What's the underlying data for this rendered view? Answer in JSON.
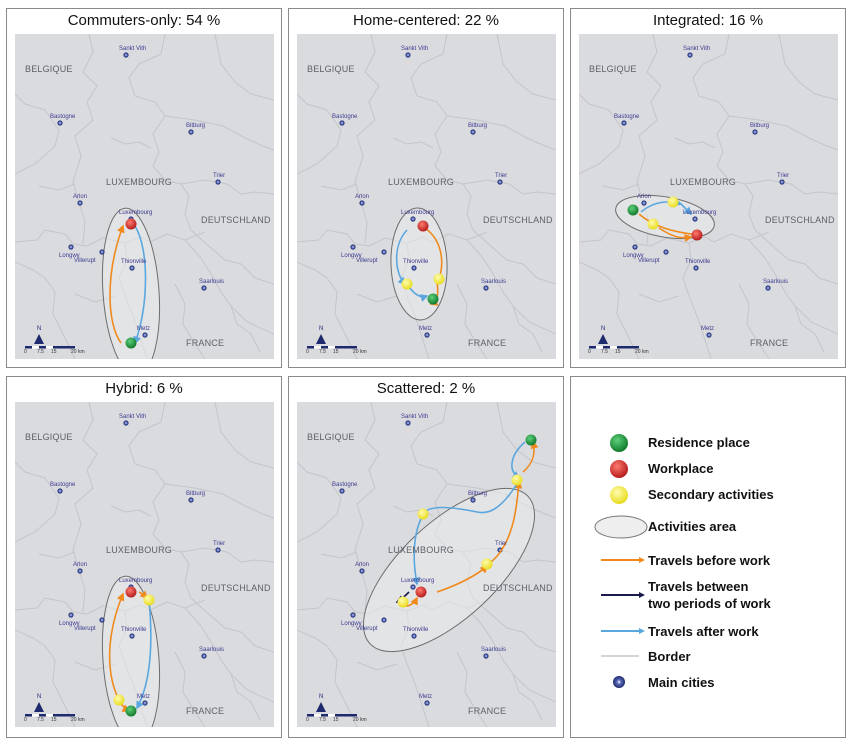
{
  "panels": [
    {
      "key": "commuters",
      "title": "Commuters-only: 54 %"
    },
    {
      "key": "home",
      "title": "Home-centered: 22 %"
    },
    {
      "key": "integrated",
      "title": "Integrated: 16 %"
    },
    {
      "key": "hybrid",
      "title": "Hybrid: 6 %"
    },
    {
      "key": "scattered",
      "title": "Scattered: 2 %"
    }
  ],
  "countries": {
    "belgique": "BELGIQUE",
    "luxembourg": "LUXEMBOURG",
    "deutschland": "DEUTSCHLAND",
    "france": "FRANCE"
  },
  "cities": {
    "sankt_vith": "Sankt Vith",
    "bastogne": "Bastogne",
    "bitburg": "Bitburg",
    "arlon": "Arlon",
    "trier": "Trier",
    "luxembourg": "Luxembourg",
    "longwy": "Longwy",
    "villerupt": "Villerupt",
    "thionville": "Thionville",
    "saarlouis": "Saarlouis",
    "metz": "Metz"
  },
  "scale": {
    "north": "N",
    "ticks": [
      "0",
      "7.5",
      "15",
      "20"
    ],
    "unit": "km"
  },
  "legend": {
    "residence": "Residence place",
    "workplace": "Workplace",
    "secondary": "Secondary activities",
    "area": "Activities area",
    "before": "Travels before work",
    "between_1": "Travels between",
    "between_2": "two periods of work",
    "after": "Travels after work",
    "border": "Border",
    "cities": "Main cities"
  },
  "colors": {
    "residence": "#1a9b3e",
    "workplace": "#d92d2d",
    "secondary": "#f2ea3a",
    "before": "#f08a1c",
    "between": "#1a1a4a",
    "after": "#5aa7e0",
    "border": "#c4c5ca",
    "map_bg": "#dadbdf"
  }
}
